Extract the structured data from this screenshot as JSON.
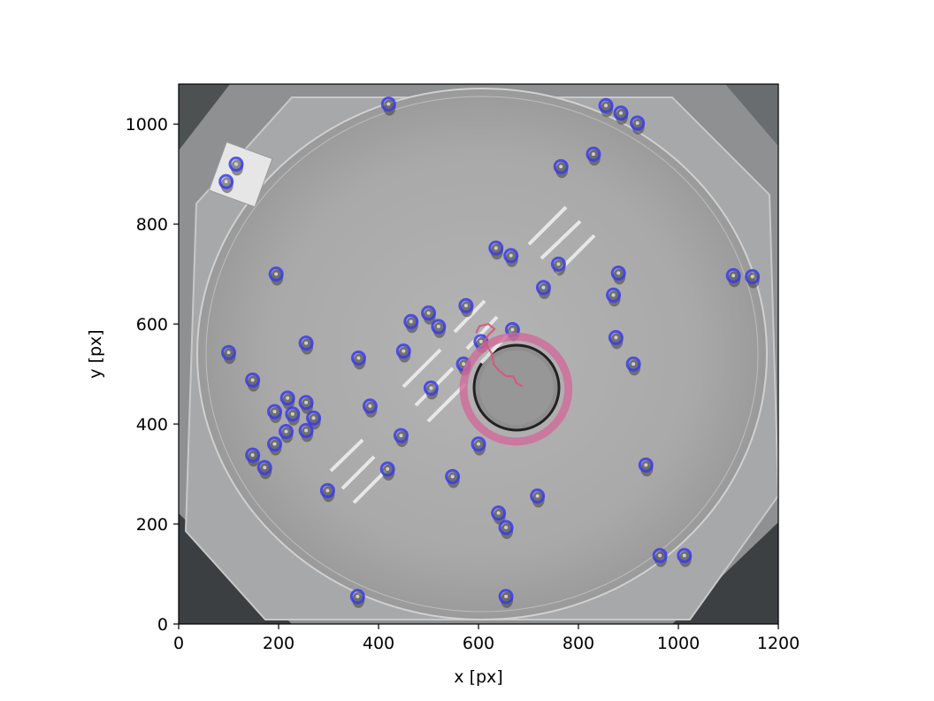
{
  "chart_data": {
    "type": "scatter",
    "background": "grayscale arena photo (circular dish with central ring)",
    "xlabel": "x [px]",
    "ylabel": "y [px]",
    "xlim": [
      0,
      1200
    ],
    "ylim": [
      0,
      1080
    ],
    "xticks": [
      0,
      200,
      400,
      600,
      800,
      1000,
      1200
    ],
    "yticks": [
      0,
      200,
      400,
      600,
      800,
      1000
    ],
    "grid": false,
    "marker_color": "#3a3af0",
    "ring_color": "#d16a9a",
    "trajectory_color": "#d4567f",
    "points": [
      {
        "x": 420,
        "y": 1040
      },
      {
        "x": 855,
        "y": 1037
      },
      {
        "x": 885,
        "y": 1022
      },
      {
        "x": 918,
        "y": 1002
      },
      {
        "x": 115,
        "y": 920
      },
      {
        "x": 95,
        "y": 885
      },
      {
        "x": 765,
        "y": 915
      },
      {
        "x": 830,
        "y": 940
      },
      {
        "x": 635,
        "y": 752
      },
      {
        "x": 665,
        "y": 737
      },
      {
        "x": 760,
        "y": 720
      },
      {
        "x": 195,
        "y": 700
      },
      {
        "x": 880,
        "y": 702
      },
      {
        "x": 1110,
        "y": 697
      },
      {
        "x": 1148,
        "y": 695
      },
      {
        "x": 730,
        "y": 673
      },
      {
        "x": 870,
        "y": 658
      },
      {
        "x": 575,
        "y": 637
      },
      {
        "x": 500,
        "y": 622
      },
      {
        "x": 465,
        "y": 605
      },
      {
        "x": 520,
        "y": 595
      },
      {
        "x": 668,
        "y": 589
      },
      {
        "x": 255,
        "y": 562
      },
      {
        "x": 605,
        "y": 565
      },
      {
        "x": 875,
        "y": 573
      },
      {
        "x": 100,
        "y": 543
      },
      {
        "x": 450,
        "y": 546
      },
      {
        "x": 360,
        "y": 532
      },
      {
        "x": 570,
        "y": 520
      },
      {
        "x": 910,
        "y": 520
      },
      {
        "x": 148,
        "y": 488
      },
      {
        "x": 505,
        "y": 472
      },
      {
        "x": 218,
        "y": 452
      },
      {
        "x": 255,
        "y": 443
      },
      {
        "x": 383,
        "y": 436
      },
      {
        "x": 192,
        "y": 425
      },
      {
        "x": 228,
        "y": 420
      },
      {
        "x": 270,
        "y": 412
      },
      {
        "x": 215,
        "y": 385
      },
      {
        "x": 255,
        "y": 387
      },
      {
        "x": 445,
        "y": 377
      },
      {
        "x": 192,
        "y": 360
      },
      {
        "x": 600,
        "y": 360
      },
      {
        "x": 148,
        "y": 338
      },
      {
        "x": 172,
        "y": 313
      },
      {
        "x": 418,
        "y": 310
      },
      {
        "x": 935,
        "y": 318
      },
      {
        "x": 548,
        "y": 295
      },
      {
        "x": 298,
        "y": 267
      },
      {
        "x": 718,
        "y": 256
      },
      {
        "x": 640,
        "y": 222
      },
      {
        "x": 655,
        "y": 193
      },
      {
        "x": 963,
        "y": 137
      },
      {
        "x": 1012,
        "y": 137
      },
      {
        "x": 358,
        "y": 55
      },
      {
        "x": 655,
        "y": 55
      }
    ],
    "ring": {
      "cx": 675,
      "cy": 470,
      "r": 105
    },
    "trajectory": [
      {
        "x": 688,
        "y": 475
      },
      {
        "x": 676,
        "y": 482
      },
      {
        "x": 670,
        "y": 495
      },
      {
        "x": 655,
        "y": 496
      },
      {
        "x": 640,
        "y": 508
      },
      {
        "x": 630,
        "y": 520
      },
      {
        "x": 628,
        "y": 538
      },
      {
        "x": 620,
        "y": 552
      },
      {
        "x": 612,
        "y": 566
      },
      {
        "x": 620,
        "y": 578
      },
      {
        "x": 632,
        "y": 590
      },
      {
        "x": 620,
        "y": 600
      },
      {
        "x": 602,
        "y": 596
      },
      {
        "x": 595,
        "y": 582
      }
    ]
  }
}
